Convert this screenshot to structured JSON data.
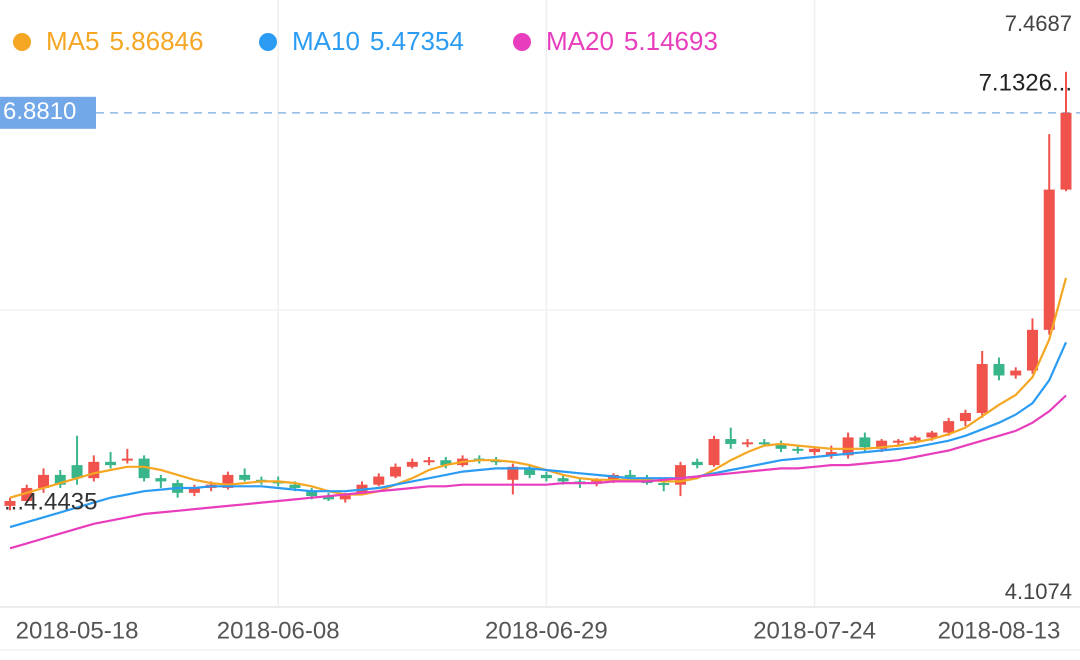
{
  "chart_data": {
    "type": "candlestick",
    "categories": [
      null,
      null,
      null,
      null,
      "2018-05-18",
      null,
      null,
      null,
      null,
      null,
      null,
      null,
      null,
      null,
      null,
      null,
      "2018-06-08",
      null,
      null,
      null,
      null,
      null,
      null,
      null,
      null,
      null,
      null,
      null,
      null,
      null,
      null,
      null,
      "2018-06-29",
      null,
      null,
      null,
      null,
      null,
      null,
      null,
      null,
      null,
      null,
      null,
      null,
      null,
      null,
      null,
      "2018-07-24",
      null,
      null,
      null,
      null,
      null,
      null,
      null,
      null,
      null,
      null,
      "2018-08-13",
      null,
      null,
      null,
      null
    ],
    "open": [
      4.47,
      4.5,
      4.58,
      4.66,
      4.72,
      4.64,
      4.74,
      4.75,
      4.76,
      4.64,
      4.61,
      4.55,
      4.58,
      4.58,
      4.66,
      4.63,
      4.62,
      4.6,
      4.56,
      4.53,
      4.51,
      4.55,
      4.6,
      4.65,
      4.71,
      4.74,
      4.75,
      4.72,
      4.76,
      4.75,
      4.63,
      4.7,
      4.66,
      4.64,
      4.62,
      4.62,
      4.63,
      4.66,
      4.64,
      4.61,
      4.6,
      4.74,
      4.72,
      4.88,
      4.85,
      4.86,
      4.85,
      4.82,
      4.8,
      4.78,
      4.78,
      4.89,
      4.82,
      4.86,
      4.87,
      4.89,
      4.92,
      4.99,
      5.04,
      5.34,
      5.27,
      5.3,
      5.55,
      6.41
    ],
    "high": [
      4.52,
      4.6,
      4.7,
      4.69,
      4.9,
      4.78,
      4.8,
      4.82,
      4.78,
      4.66,
      4.63,
      4.6,
      4.62,
      4.68,
      4.7,
      4.65,
      4.65,
      4.62,
      4.58,
      4.55,
      4.55,
      4.62,
      4.67,
      4.73,
      4.76,
      4.77,
      4.77,
      4.78,
      4.78,
      4.77,
      4.73,
      4.72,
      4.68,
      4.66,
      4.64,
      4.64,
      4.67,
      4.69,
      4.66,
      4.64,
      4.74,
      4.76,
      4.9,
      4.95,
      4.88,
      4.88,
      4.87,
      4.84,
      4.83,
      4.84,
      4.92,
      4.92,
      4.88,
      4.88,
      4.9,
      4.93,
      5.01,
      5.06,
      5.42,
      5.38,
      5.32,
      5.62,
      6.75,
      7.1326
    ],
    "low": [
      4.4435,
      4.49,
      4.55,
      4.58,
      4.6,
      4.62,
      4.7,
      4.73,
      4.62,
      4.58,
      4.52,
      4.53,
      4.56,
      4.57,
      4.62,
      4.6,
      4.59,
      4.56,
      4.51,
      4.5,
      4.49,
      4.54,
      4.59,
      4.64,
      4.7,
      4.72,
      4.7,
      4.71,
      4.73,
      4.72,
      4.54,
      4.64,
      4.62,
      4.6,
      4.58,
      4.59,
      4.61,
      4.63,
      4.6,
      4.56,
      4.53,
      4.7,
      4.71,
      4.82,
      4.83,
      4.84,
      4.8,
      4.79,
      4.78,
      4.76,
      4.76,
      4.8,
      4.8,
      4.84,
      4.85,
      4.87,
      4.9,
      4.96,
      5.01,
      5.24,
      5.25,
      5.28,
      5.52,
      6.4
    ],
    "close": [
      4.5,
      4.58,
      4.66,
      4.6,
      4.64,
      4.74,
      4.72,
      4.76,
      4.64,
      4.62,
      4.55,
      4.58,
      4.6,
      4.66,
      4.63,
      4.62,
      4.61,
      4.58,
      4.53,
      4.51,
      4.54,
      4.6,
      4.65,
      4.71,
      4.74,
      4.75,
      4.72,
      4.76,
      4.75,
      4.74,
      4.71,
      4.66,
      4.64,
      4.62,
      4.61,
      4.63,
      4.66,
      4.65,
      4.61,
      4.6,
      4.72,
      4.72,
      4.88,
      4.85,
      4.86,
      4.85,
      4.82,
      4.81,
      4.82,
      4.8,
      4.89,
      4.83,
      4.87,
      4.87,
      4.89,
      4.92,
      4.99,
      5.04,
      5.34,
      5.27,
      5.3,
      5.55,
      6.41,
      6.881
    ],
    "series": [
      {
        "name": "MA5",
        "color": "#f5a623",
        "values": [
          4.52,
          4.55,
          4.58,
          4.61,
          4.64,
          4.67,
          4.69,
          4.71,
          4.71,
          4.69,
          4.66,
          4.63,
          4.61,
          4.6,
          4.61,
          4.62,
          4.62,
          4.61,
          4.59,
          4.56,
          4.54,
          4.54,
          4.56,
          4.6,
          4.64,
          4.69,
          4.72,
          4.74,
          4.75,
          4.75,
          4.74,
          4.72,
          4.69,
          4.66,
          4.64,
          4.63,
          4.63,
          4.63,
          4.63,
          4.62,
          4.62,
          4.64,
          4.69,
          4.75,
          4.8,
          4.84,
          4.85,
          4.84,
          4.83,
          4.82,
          4.82,
          4.82,
          4.83,
          4.84,
          4.86,
          4.88,
          4.91,
          4.95,
          5.02,
          5.09,
          5.15,
          5.26,
          5.49,
          5.86846
        ]
      },
      {
        "name": "MA10",
        "color": "#2b9cf2",
        "values": [
          4.34,
          4.37,
          4.4,
          4.43,
          4.46,
          4.49,
          4.52,
          4.54,
          4.56,
          4.57,
          4.58,
          4.58,
          4.59,
          4.59,
          4.59,
          4.59,
          4.58,
          4.57,
          4.56,
          4.56,
          4.56,
          4.57,
          4.58,
          4.6,
          4.62,
          4.64,
          4.66,
          4.68,
          4.69,
          4.7,
          4.7,
          4.7,
          4.69,
          4.68,
          4.67,
          4.66,
          4.65,
          4.64,
          4.64,
          4.64,
          4.64,
          4.65,
          4.67,
          4.69,
          4.71,
          4.73,
          4.75,
          4.76,
          4.77,
          4.78,
          4.79,
          4.8,
          4.81,
          4.82,
          4.83,
          4.85,
          4.87,
          4.9,
          4.94,
          4.98,
          5.03,
          5.1,
          5.24,
          5.47354
        ]
      },
      {
        "name": "MA20",
        "color": "#e83dbd",
        "values": [
          4.21,
          4.24,
          4.27,
          4.3,
          4.33,
          4.36,
          4.38,
          4.4,
          4.42,
          4.43,
          4.44,
          4.45,
          4.46,
          4.47,
          4.48,
          4.49,
          4.5,
          4.51,
          4.52,
          4.53,
          4.54,
          4.55,
          4.56,
          4.57,
          4.58,
          4.59,
          4.59,
          4.6,
          4.6,
          4.6,
          4.6,
          4.6,
          4.6,
          4.61,
          4.61,
          4.61,
          4.62,
          4.62,
          4.62,
          4.63,
          4.64,
          4.65,
          4.66,
          4.67,
          4.68,
          4.69,
          4.7,
          4.7,
          4.71,
          4.72,
          4.72,
          4.73,
          4.74,
          4.75,
          4.77,
          4.79,
          4.81,
          4.84,
          4.87,
          4.9,
          4.93,
          4.98,
          5.05,
          5.14693
        ]
      }
    ],
    "up_color": "#f0524c",
    "down_color": "#38b68a",
    "ylim": [
      4.1074,
      7.4687
    ],
    "yticks": [
      7.4687,
      4.1074
    ],
    "grid": true,
    "price_line": {
      "value": 6.881,
      "label": "6.8810"
    },
    "high_label": "7.1326...",
    "low_label": "...4.4435"
  }
}
